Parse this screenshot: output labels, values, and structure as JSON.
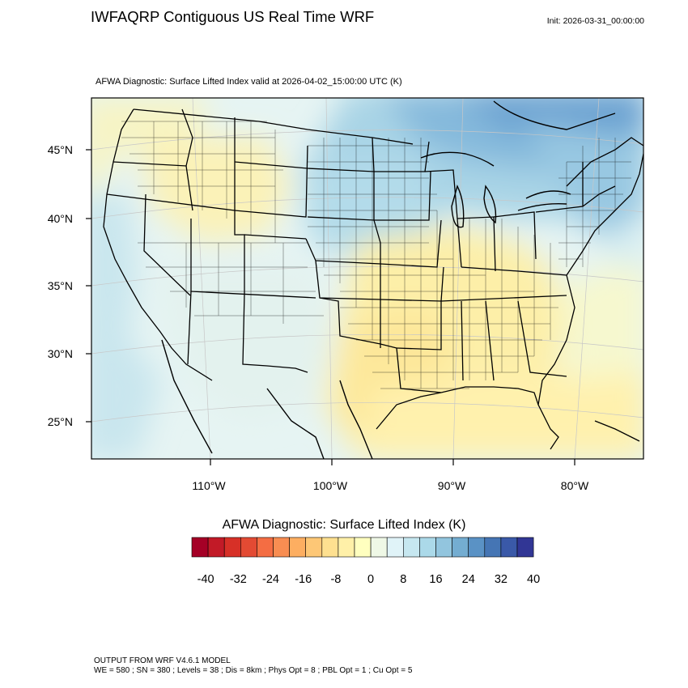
{
  "header": {
    "title": "IWFAQRP Contiguous US Real Time WRF",
    "init": "Init: 2026-03-31_00:00:00"
  },
  "map": {
    "subtitle": "AFWA Diagnostic: Surface Lifted Index valid at 2026-04-02_15:00:00 UTC   (K)",
    "lat_labels": [
      "45°N",
      "40°N",
      "35°N",
      "30°N",
      "25°N"
    ],
    "lon_labels": [
      "110°W",
      "100°W",
      "90°W",
      "80°W"
    ]
  },
  "colorbar": {
    "title": "AFWA Diagnostic: Surface Lifted Index  (K)",
    "colors": [
      "#a50026",
      "#c21a27",
      "#d73027",
      "#e34a33",
      "#f46d43",
      "#f88d52",
      "#fdae61",
      "#fdc776",
      "#fee090",
      "#fff0a8",
      "#ffffbf",
      "#eff8e6",
      "#e0f3f8",
      "#c6e7f0",
      "#abd9e9",
      "#92c5de",
      "#74add1",
      "#5a92c5",
      "#4575b4",
      "#3a59a8",
      "#313695"
    ],
    "labels": [
      "-40",
      "-32",
      "-24",
      "-16",
      "-8",
      "0",
      "8",
      "16",
      "24",
      "32",
      "40"
    ]
  },
  "footer": {
    "line1": "OUTPUT FROM WRF V4.6.1 MODEL",
    "line2": "WE = 580 ; SN = 380 ; Levels = 38 ; Dis = 8km ; Phys Opt = 8 ; PBL Opt = 1 ; Cu Opt = 5"
  }
}
